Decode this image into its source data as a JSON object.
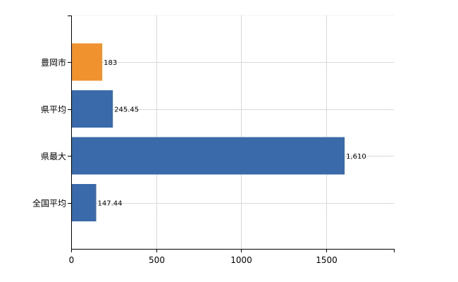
{
  "chart_data": {
    "type": "bar",
    "orientation": "horizontal",
    "categories": [
      "豊岡市",
      "県平均",
      "県最大",
      "全国平均"
    ],
    "values": [
      183,
      245.45,
      1610,
      147.44
    ],
    "value_labels": [
      "183",
      "245.45",
      "1,610",
      "147.44"
    ],
    "bar_colors": [
      "#f0922e",
      "#3a6aaa",
      "#3a6aaa",
      "#3a6aaa"
    ],
    "xlim": [
      0,
      1900
    ],
    "xticks": [
      0,
      500,
      1000,
      1500
    ],
    "xtick_labels": [
      "0",
      "500",
      "1000",
      "1500"
    ],
    "grid": true,
    "legend": "none"
  }
}
